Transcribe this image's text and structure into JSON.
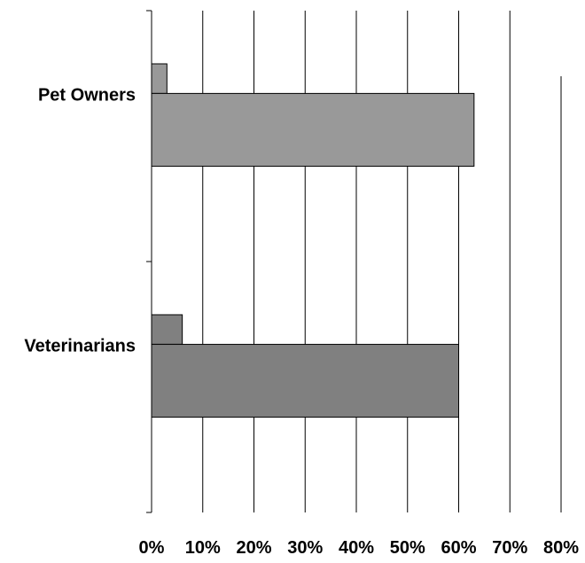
{
  "chart_data": {
    "type": "bar",
    "orientation": "horizontal",
    "categories": [
      "Pet Owners",
      "Veterinarians"
    ],
    "series": [
      {
        "values": [
          3,
          6
        ]
      },
      {
        "values": [
          63,
          60
        ]
      }
    ],
    "xlim": [
      0,
      80
    ],
    "x_ticks": [
      0,
      10,
      20,
      30,
      40,
      50,
      60,
      70,
      80
    ],
    "x_tick_labels": [
      "0%",
      "10%",
      "20%",
      "30%",
      "40%",
      "50%",
      "60%",
      "70%",
      "80%"
    ],
    "category_colors": {
      "Pet Owners": "#999999",
      "Veterinarians": "#808080"
    },
    "grid": "vertical gridlines",
    "legend": "none"
  }
}
